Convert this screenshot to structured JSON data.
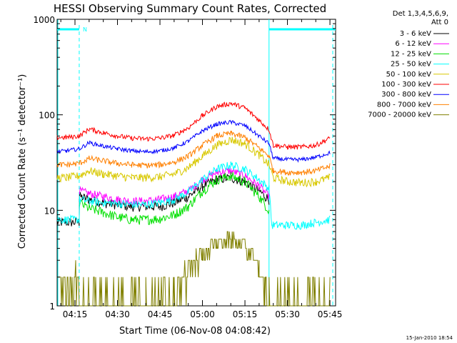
{
  "chart_data": {
    "type": "line",
    "title": "HESSI Observing Summary Count Rates, Corrected",
    "xlabel": "Start Time (06-Nov-08 04:08:42)",
    "ylabel": "Corrected Count Rate (s⁻¹ detector⁻¹)",
    "y_scale": "log",
    "ylim": [
      1,
      1000
    ],
    "y_ticks": [
      "1",
      "10",
      "100",
      "1000"
    ],
    "x_ticks": [
      "04:15",
      "04:30",
      "04:45",
      "05:00",
      "05:15",
      "05:30",
      "05:45"
    ],
    "x_tick_minutes": [
      375,
      390,
      405,
      420,
      435,
      450,
      465
    ],
    "xlim_minutes": [
      368.7,
      467
    ],
    "legend_header": [
      "Det 1,3,4,5,6,9,",
      "Att 0"
    ],
    "legend_position": "right",
    "grid": false,
    "night_intervals_minutes": [
      [
        368.7,
        376.5
      ],
      [
        443.5,
        467
      ]
    ],
    "saa_marker_label": "N",
    "saa_marker_minutes": 376.5,
    "series": [
      {
        "name": "3 - 6 keV",
        "color": "#000000",
        "x": [
          368.7,
          376.5,
          376.6,
          380,
          385,
          390,
          395,
          400,
          405,
          410,
          415,
          420,
          425,
          430,
          435,
          440,
          443.5,
          450,
          455,
          460,
          465
        ],
        "y": [
          7.5,
          7.5,
          14,
          13,
          12,
          11.5,
          11,
          11,
          11,
          12,
          14,
          18,
          21,
          22,
          20,
          16,
          13,
          null,
          null,
          null,
          null
        ]
      },
      {
        "name": "6 - 12 keV",
        "color": "#ff00ff",
        "x": [
          368.7,
          376.5,
          376.6,
          380,
          385,
          390,
          395,
          400,
          405,
          410,
          415,
          420,
          425,
          430,
          435,
          440,
          443.5
        ],
        "y": [
          null,
          null,
          16,
          15,
          14,
          13,
          12.5,
          12.5,
          13,
          14,
          16,
          21,
          25,
          26,
          23,
          18,
          14
        ]
      },
      {
        "name": "12 - 25 keV",
        "color": "#00e000",
        "x": [
          368.7,
          376.5,
          376.6,
          380,
          385,
          390,
          395,
          400,
          405,
          410,
          415,
          420,
          425,
          430,
          435,
          440,
          443.5
        ],
        "y": [
          null,
          null,
          12,
          10.5,
          9.5,
          8.5,
          8,
          8,
          8.2,
          9,
          11,
          16,
          21,
          23,
          20,
          14,
          10
        ]
      },
      {
        "name": "25 - 50 keV",
        "color": "#00ffff",
        "x": [
          368.7,
          372,
          376.5,
          376.6,
          380,
          385,
          390,
          395,
          400,
          405,
          410,
          415,
          420,
          425,
          430,
          435,
          440,
          443.5,
          444.5,
          450,
          455,
          460,
          465
        ],
        "y": [
          8,
          8,
          8,
          13,
          12.5,
          12,
          11.8,
          11.5,
          11.5,
          12,
          13,
          15.5,
          21,
          27,
          30,
          27,
          21,
          17,
          7,
          7,
          7,
          7.5,
          8
        ]
      },
      {
        "name": "50 - 100 keV",
        "color": "#d8c800",
        "x": [
          368.7,
          372,
          376.5,
          380,
          385,
          390,
          395,
          400,
          405,
          410,
          415,
          420,
          425,
          430,
          435,
          440,
          443.5,
          445,
          450,
          455,
          460,
          465
        ],
        "y": [
          22,
          22,
          23,
          26,
          24,
          23,
          22,
          22,
          22.5,
          24,
          28,
          37,
          48,
          55,
          50,
          38,
          30,
          22,
          20,
          19.5,
          20,
          22
        ]
      },
      {
        "name": "100 - 300 keV",
        "color": "#ff0000",
        "x": [
          368.7,
          372,
          376.5,
          380,
          385,
          390,
          395,
          400,
          405,
          410,
          415,
          420,
          425,
          430,
          435,
          440,
          443.5,
          445,
          450,
          455,
          460,
          465
        ],
        "y": [
          58,
          58,
          60,
          71,
          65,
          60,
          57,
          56,
          57,
          61,
          73,
          98,
          122,
          132,
          118,
          88,
          70,
          48,
          46,
          46,
          48,
          57
        ]
      },
      {
        "name": "300 - 800 keV",
        "color": "#0000ff",
        "x": [
          368.7,
          372,
          376.5,
          380,
          385,
          390,
          395,
          400,
          405,
          410,
          415,
          420,
          425,
          430,
          435,
          440,
          443.5,
          445,
          450,
          455,
          460,
          465
        ],
        "y": [
          41,
          42,
          44,
          51,
          47,
          44,
          42,
          41,
          42,
          45,
          53,
          68,
          80,
          84,
          77,
          60,
          50,
          35,
          34,
          34,
          36,
          40
        ]
      },
      {
        "name": "800 - 7000 keV",
        "color": "#ff8000",
        "x": [
          368.7,
          372,
          376.5,
          380,
          385,
          390,
          395,
          400,
          405,
          410,
          415,
          420,
          425,
          430,
          435,
          440,
          443.5,
          445,
          450,
          455,
          460,
          465
        ],
        "y": [
          30,
          30,
          31,
          35,
          33,
          31,
          30,
          29.5,
          30,
          32,
          37,
          48,
          60,
          64,
          58,
          45,
          37,
          26,
          25,
          25,
          26,
          29
        ]
      },
      {
        "name": "7000 - 20000 keV",
        "color": "#808000",
        "x": [
          368.7,
          372,
          376,
          377,
          400,
          410,
          412,
          415,
          420,
          425,
          430,
          435,
          440,
          442,
          443.5,
          465
        ],
        "y": [
          1.8,
          1.8,
          1.8,
          1.0,
          1.0,
          1.0,
          1.5,
          2.5,
          3.5,
          4.6,
          5.0,
          4.2,
          2.5,
          1.5,
          1.0,
          1.0
        ]
      }
    ]
  },
  "footer": {
    "timestamp": "15-Jan-2010 18:54"
  }
}
